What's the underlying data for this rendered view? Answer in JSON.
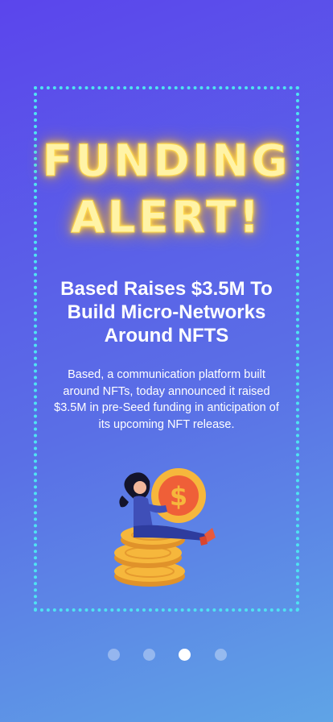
{
  "neon_title": {
    "line1": "FUNDING",
    "line2": "ALERT!"
  },
  "headline": "Based Raises $3.5M To Build Micro-Networks Around NFTS",
  "body": "Based, a communication platform built around NFTs, today announced it raised $3.5M in pre-Seed funding in anticipation of its upcoming NFT release.",
  "pagination": {
    "total": 4,
    "active": 3
  },
  "colors": {
    "border": "#4fe3f2",
    "neon": "#ffd84a",
    "coin": "#f6b73c"
  },
  "illustration": {
    "icon": "dollar-coin-icon"
  }
}
